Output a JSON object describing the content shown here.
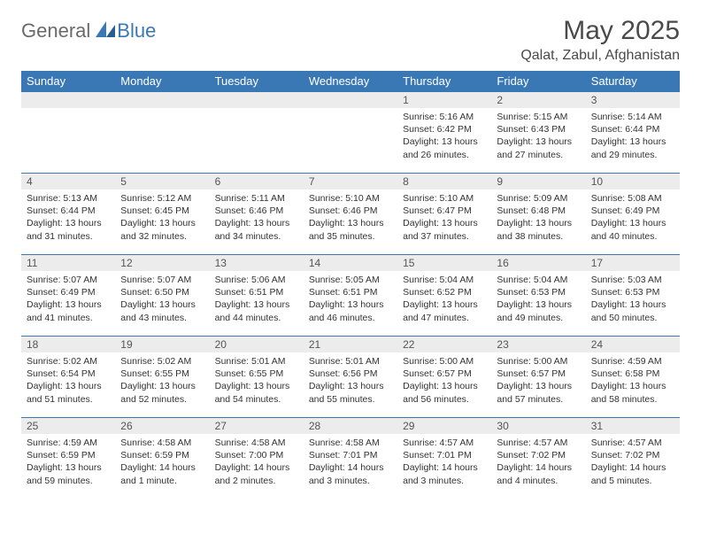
{
  "brand": {
    "general": "General",
    "blue": "Blue"
  },
  "title": "May 2025",
  "location": "Qalat, Zabul, Afghanistan",
  "colors": {
    "header_bg": "#3a78b5",
    "header_fg": "#ffffff",
    "daynum_bg": "#ececec",
    "border": "#3a78b5",
    "text": "#333333",
    "brand_gray": "#6a6a6a",
    "brand_blue": "#3a78b5"
  },
  "weekdays": [
    "Sunday",
    "Monday",
    "Tuesday",
    "Wednesday",
    "Thursday",
    "Friday",
    "Saturday"
  ],
  "weeks": [
    [
      null,
      null,
      null,
      null,
      {
        "n": "1",
        "sr": "Sunrise: 5:16 AM",
        "ss": "Sunset: 6:42 PM",
        "d1": "Daylight: 13 hours",
        "d2": "and 26 minutes."
      },
      {
        "n": "2",
        "sr": "Sunrise: 5:15 AM",
        "ss": "Sunset: 6:43 PM",
        "d1": "Daylight: 13 hours",
        "d2": "and 27 minutes."
      },
      {
        "n": "3",
        "sr": "Sunrise: 5:14 AM",
        "ss": "Sunset: 6:44 PM",
        "d1": "Daylight: 13 hours",
        "d2": "and 29 minutes."
      }
    ],
    [
      {
        "n": "4",
        "sr": "Sunrise: 5:13 AM",
        "ss": "Sunset: 6:44 PM",
        "d1": "Daylight: 13 hours",
        "d2": "and 31 minutes."
      },
      {
        "n": "5",
        "sr": "Sunrise: 5:12 AM",
        "ss": "Sunset: 6:45 PM",
        "d1": "Daylight: 13 hours",
        "d2": "and 32 minutes."
      },
      {
        "n": "6",
        "sr": "Sunrise: 5:11 AM",
        "ss": "Sunset: 6:46 PM",
        "d1": "Daylight: 13 hours",
        "d2": "and 34 minutes."
      },
      {
        "n": "7",
        "sr": "Sunrise: 5:10 AM",
        "ss": "Sunset: 6:46 PM",
        "d1": "Daylight: 13 hours",
        "d2": "and 35 minutes."
      },
      {
        "n": "8",
        "sr": "Sunrise: 5:10 AM",
        "ss": "Sunset: 6:47 PM",
        "d1": "Daylight: 13 hours",
        "d2": "and 37 minutes."
      },
      {
        "n": "9",
        "sr": "Sunrise: 5:09 AM",
        "ss": "Sunset: 6:48 PM",
        "d1": "Daylight: 13 hours",
        "d2": "and 38 minutes."
      },
      {
        "n": "10",
        "sr": "Sunrise: 5:08 AM",
        "ss": "Sunset: 6:49 PM",
        "d1": "Daylight: 13 hours",
        "d2": "and 40 minutes."
      }
    ],
    [
      {
        "n": "11",
        "sr": "Sunrise: 5:07 AM",
        "ss": "Sunset: 6:49 PM",
        "d1": "Daylight: 13 hours",
        "d2": "and 41 minutes."
      },
      {
        "n": "12",
        "sr": "Sunrise: 5:07 AM",
        "ss": "Sunset: 6:50 PM",
        "d1": "Daylight: 13 hours",
        "d2": "and 43 minutes."
      },
      {
        "n": "13",
        "sr": "Sunrise: 5:06 AM",
        "ss": "Sunset: 6:51 PM",
        "d1": "Daylight: 13 hours",
        "d2": "and 44 minutes."
      },
      {
        "n": "14",
        "sr": "Sunrise: 5:05 AM",
        "ss": "Sunset: 6:51 PM",
        "d1": "Daylight: 13 hours",
        "d2": "and 46 minutes."
      },
      {
        "n": "15",
        "sr": "Sunrise: 5:04 AM",
        "ss": "Sunset: 6:52 PM",
        "d1": "Daylight: 13 hours",
        "d2": "and 47 minutes."
      },
      {
        "n": "16",
        "sr": "Sunrise: 5:04 AM",
        "ss": "Sunset: 6:53 PM",
        "d1": "Daylight: 13 hours",
        "d2": "and 49 minutes."
      },
      {
        "n": "17",
        "sr": "Sunrise: 5:03 AM",
        "ss": "Sunset: 6:53 PM",
        "d1": "Daylight: 13 hours",
        "d2": "and 50 minutes."
      }
    ],
    [
      {
        "n": "18",
        "sr": "Sunrise: 5:02 AM",
        "ss": "Sunset: 6:54 PM",
        "d1": "Daylight: 13 hours",
        "d2": "and 51 minutes."
      },
      {
        "n": "19",
        "sr": "Sunrise: 5:02 AM",
        "ss": "Sunset: 6:55 PM",
        "d1": "Daylight: 13 hours",
        "d2": "and 52 minutes."
      },
      {
        "n": "20",
        "sr": "Sunrise: 5:01 AM",
        "ss": "Sunset: 6:55 PM",
        "d1": "Daylight: 13 hours",
        "d2": "and 54 minutes."
      },
      {
        "n": "21",
        "sr": "Sunrise: 5:01 AM",
        "ss": "Sunset: 6:56 PM",
        "d1": "Daylight: 13 hours",
        "d2": "and 55 minutes."
      },
      {
        "n": "22",
        "sr": "Sunrise: 5:00 AM",
        "ss": "Sunset: 6:57 PM",
        "d1": "Daylight: 13 hours",
        "d2": "and 56 minutes."
      },
      {
        "n": "23",
        "sr": "Sunrise: 5:00 AM",
        "ss": "Sunset: 6:57 PM",
        "d1": "Daylight: 13 hours",
        "d2": "and 57 minutes."
      },
      {
        "n": "24",
        "sr": "Sunrise: 4:59 AM",
        "ss": "Sunset: 6:58 PM",
        "d1": "Daylight: 13 hours",
        "d2": "and 58 minutes."
      }
    ],
    [
      {
        "n": "25",
        "sr": "Sunrise: 4:59 AM",
        "ss": "Sunset: 6:59 PM",
        "d1": "Daylight: 13 hours",
        "d2": "and 59 minutes."
      },
      {
        "n": "26",
        "sr": "Sunrise: 4:58 AM",
        "ss": "Sunset: 6:59 PM",
        "d1": "Daylight: 14 hours",
        "d2": "and 1 minute."
      },
      {
        "n": "27",
        "sr": "Sunrise: 4:58 AM",
        "ss": "Sunset: 7:00 PM",
        "d1": "Daylight: 14 hours",
        "d2": "and 2 minutes."
      },
      {
        "n": "28",
        "sr": "Sunrise: 4:58 AM",
        "ss": "Sunset: 7:01 PM",
        "d1": "Daylight: 14 hours",
        "d2": "and 3 minutes."
      },
      {
        "n": "29",
        "sr": "Sunrise: 4:57 AM",
        "ss": "Sunset: 7:01 PM",
        "d1": "Daylight: 14 hours",
        "d2": "and 3 minutes."
      },
      {
        "n": "30",
        "sr": "Sunrise: 4:57 AM",
        "ss": "Sunset: 7:02 PM",
        "d1": "Daylight: 14 hours",
        "d2": "and 4 minutes."
      },
      {
        "n": "31",
        "sr": "Sunrise: 4:57 AM",
        "ss": "Sunset: 7:02 PM",
        "d1": "Daylight: 14 hours",
        "d2": "and 5 minutes."
      }
    ]
  ]
}
